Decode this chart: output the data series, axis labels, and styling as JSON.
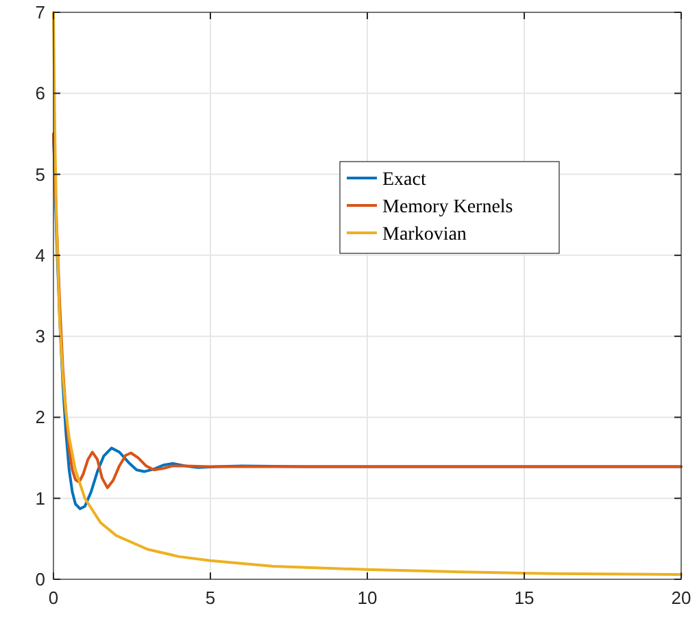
{
  "chart_data": {
    "type": "line",
    "xlim": [
      0,
      20
    ],
    "ylim": [
      0,
      7
    ],
    "xticks": [
      0,
      5,
      10,
      15,
      20
    ],
    "yticks": [
      0,
      1,
      2,
      3,
      4,
      5,
      6,
      7
    ],
    "grid": true,
    "legend": "right",
    "line_style": "solid",
    "series": [
      {
        "name": "Exact",
        "color": "#0072bd",
        "x": [
          0,
          0.1,
          0.2,
          0.3,
          0.4,
          0.5,
          0.6,
          0.7,
          0.85,
          1.0,
          1.2,
          1.4,
          1.6,
          1.85,
          2.1,
          2.4,
          2.65,
          2.9,
          3.2,
          3.5,
          3.8,
          4.2,
          4.6,
          5.2,
          6,
          8,
          20
        ],
        "values": [
          5.5,
          4.2,
          3.2,
          2.4,
          1.8,
          1.35,
          1.08,
          0.93,
          0.87,
          0.9,
          1.08,
          1.33,
          1.52,
          1.62,
          1.57,
          1.44,
          1.35,
          1.33,
          1.36,
          1.41,
          1.43,
          1.4,
          1.38,
          1.39,
          1.4,
          1.39,
          1.39
        ]
      },
      {
        "name": "Memory Kernels",
        "color": "#d95319",
        "x": [
          0,
          0.1,
          0.2,
          0.3,
          0.4,
          0.5,
          0.6,
          0.7,
          0.82,
          0.95,
          1.1,
          1.24,
          1.4,
          1.55,
          1.72,
          1.9,
          2.1,
          2.3,
          2.47,
          2.7,
          2.95,
          3.2,
          3.5,
          3.8,
          4.2,
          5,
          20
        ],
        "values": [
          5.5,
          4.4,
          3.4,
          2.6,
          2.05,
          1.6,
          1.35,
          1.23,
          1.2,
          1.3,
          1.48,
          1.57,
          1.48,
          1.25,
          1.13,
          1.22,
          1.4,
          1.53,
          1.56,
          1.5,
          1.4,
          1.35,
          1.37,
          1.4,
          1.4,
          1.39,
          1.39
        ]
      },
      {
        "name": "Markovian",
        "color": "#edb120",
        "x": [
          0,
          0.05,
          0.1,
          0.2,
          0.3,
          0.4,
          0.5,
          0.7,
          1,
          1.5,
          2,
          3,
          4,
          5,
          7,
          10,
          13,
          16,
          20
        ],
        "values": [
          7,
          5.38,
          4.38,
          3.18,
          2.5,
          2.06,
          1.75,
          1.35,
          1,
          0.7,
          0.54,
          0.37,
          0.28,
          0.23,
          0.16,
          0.12,
          0.09,
          0.07,
          0.06
        ]
      }
    ]
  }
}
